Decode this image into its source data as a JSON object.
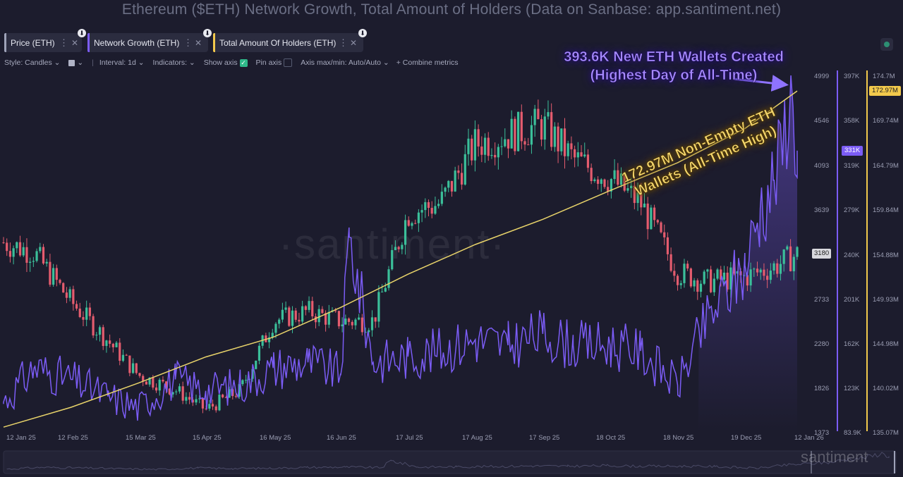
{
  "title": "Ethereum ($ETH) Network Growth, Total Amount of Holders (Data on Sanbase: app.santiment.net)",
  "metrics": [
    {
      "label": "Price (ETH)",
      "color": "#9ea2b8"
    },
    {
      "label": "Network Growth (ETH)",
      "color": "#7b5cf5"
    },
    {
      "label": "Total Amount Of Holders (ETH)",
      "color": "#f2c94c"
    }
  ],
  "toolbar": {
    "style": "Style: Candles",
    "interval": "Interval: 1d",
    "indicators": "Indicators:",
    "show_axis": "Show axis",
    "pin_axis": "Pin axis",
    "axis_minmax": "Axis max/min: Auto/Auto",
    "combine": "+ Combine metrics"
  },
  "watermark": "·santiment·",
  "watermark_small": "santiment",
  "annotations": {
    "new_wallets": "393.6K New ETH Wallets Created (Highest Day of All-Time)",
    "holders": "172.97M Non-Empty ETH Wallets (All-Time High)"
  },
  "chart_data": {
    "type": "line",
    "x_ticks": [
      "12 Jan 25",
      "12 Feb 25",
      "15 Mar 25",
      "15 Apr 25",
      "16 May 25",
      "16 Jun 25",
      "17 Jul 25",
      "17 Aug 25",
      "17 Sep 25",
      "18 Oct 25",
      "18 Nov 25",
      "19 Dec 25",
      "12 Jan 26"
    ],
    "axes": {
      "price": {
        "ticks": [
          "4999",
          "4546",
          "4093",
          "3639",
          "3186",
          "2733",
          "2280",
          "1826",
          "1373"
        ],
        "range": [
          1373,
          4999
        ],
        "current": "3180"
      },
      "network_growth": {
        "ticks": [
          "397K",
          "358K",
          "319K",
          "279K",
          "240K",
          "201K",
          "162K",
          "123K",
          "83.9K"
        ],
        "range": [
          83900,
          397000
        ],
        "current": "331K"
      },
      "holders": {
        "ticks": [
          "174.7M",
          "169.74M",
          "164.79M",
          "159.84M",
          "154.88M",
          "149.93M",
          "144.98M",
          "140.02M",
          "135.07M"
        ],
        "range": [
          135.07,
          174.7
        ],
        "current": "172.97M"
      }
    },
    "series": [
      {
        "name": "Price (ETH)",
        "unit": "USD",
        "x": [
          "12 Jan 25",
          "26 Jan 25",
          "12 Feb 25",
          "1 Mar 25",
          "15 Mar 25",
          "1 Apr 25",
          "15 Apr 25",
          "1 May 25",
          "16 May 25",
          "1 Jun 25",
          "16 Jun 25",
          "1 Jul 25",
          "17 Jul 25",
          "1 Aug 25",
          "17 Aug 25",
          "1 Sep 25",
          "17 Sep 25",
          "1 Oct 25",
          "18 Oct 25",
          "1 Nov 25",
          "18 Nov 25",
          "1 Dec 25",
          "19 Dec 25",
          "1 Jan 26",
          "12 Jan 26"
        ],
        "values": [
          3300,
          3200,
          2700,
          2300,
          1950,
          1800,
          1600,
          1800,
          2500,
          2600,
          2500,
          2500,
          3600,
          3700,
          4300,
          4400,
          4500,
          4150,
          3950,
          3700,
          3000,
          2900,
          2950,
          3050,
          3180
        ]
      },
      {
        "name": "Network Growth (ETH)",
        "unit": "wallets",
        "x": [
          "12 Jan 25",
          "26 Jan 25",
          "12 Feb 25",
          "1 Mar 25",
          "15 Mar 25",
          "1 Apr 25",
          "15 Apr 25",
          "1 May 25",
          "16 May 25",
          "1 Jun 25",
          "16 Jun 25",
          "20 Jun 25",
          "1 Jul 25",
          "17 Jul 25",
          "1 Aug 25",
          "17 Aug 25",
          "1 Sep 25",
          "17 Sep 25",
          "1 Oct 25",
          "18 Oct 25",
          "1 Nov 25",
          "18 Nov 25",
          "1 Dec 25",
          "19 Dec 25",
          "26 Dec 25",
          "1 Jan 26",
          "5 Jan 26",
          "9 Jan 26",
          "12 Jan 26"
        ],
        "values": [
          110000,
          140000,
          130000,
          115000,
          105000,
          130000,
          120000,
          125000,
          140000,
          145000,
          135000,
          255000,
          145000,
          150000,
          155000,
          165000,
          160000,
          170000,
          160000,
          160000,
          155000,
          125000,
          180000,
          230000,
          280000,
          305000,
          330000,
          393600,
          331000
        ]
      },
      {
        "name": "Total Amount Of Holders (ETH)",
        "unit": "millions",
        "x": [
          "12 Jan 25",
          "12 Feb 25",
          "15 Mar 25",
          "15 Apr 25",
          "16 May 25",
          "16 Jun 25",
          "17 Jul 25",
          "17 Aug 25",
          "17 Sep 25",
          "18 Oct 25",
          "18 Nov 25",
          "19 Dec 25",
          "12 Jan 26"
        ],
        "values": [
          135.6,
          137.8,
          140.5,
          143.4,
          145.6,
          148.9,
          152.6,
          155.9,
          158.7,
          161.9,
          165.0,
          168.8,
          172.97
        ]
      }
    ],
    "grid": false,
    "legend": "top-left"
  }
}
